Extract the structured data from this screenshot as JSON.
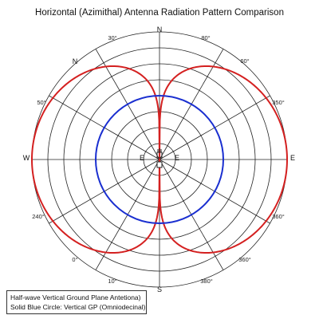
{
  "chart_data": {
    "type": "polar",
    "title": "Horizontal (Azimithal) Antenna Radiation Pattern Comparison",
    "cardinal_labels": {
      "north": "N",
      "south": "S",
      "east": "E",
      "west": "W",
      "center_east": "E",
      "center_west": "E"
    },
    "angle_labels": [
      "30°",
      "80°",
      "N",
      "60°",
      "50°",
      "350°",
      "240°",
      "360°",
      "0°",
      "360°",
      "10°",
      "380°"
    ],
    "rings": 8,
    "spokes": 12,
    "grid": true,
    "series": [
      {
        "type": "figure-eight",
        "color": "#d42020",
        "lobe_axis": "E-W",
        "max_relative_gain": 1.0
      },
      {
        "type": "circle",
        "color": "#1a2fd0",
        "relative_gain": 0.5
      }
    ]
  },
  "legend": {
    "line1": "Half-wave Vertical Ground Plane Antetiona)",
    "line2": "Solid Blue Circle: Vertical GP (Omniodecinal)"
  }
}
